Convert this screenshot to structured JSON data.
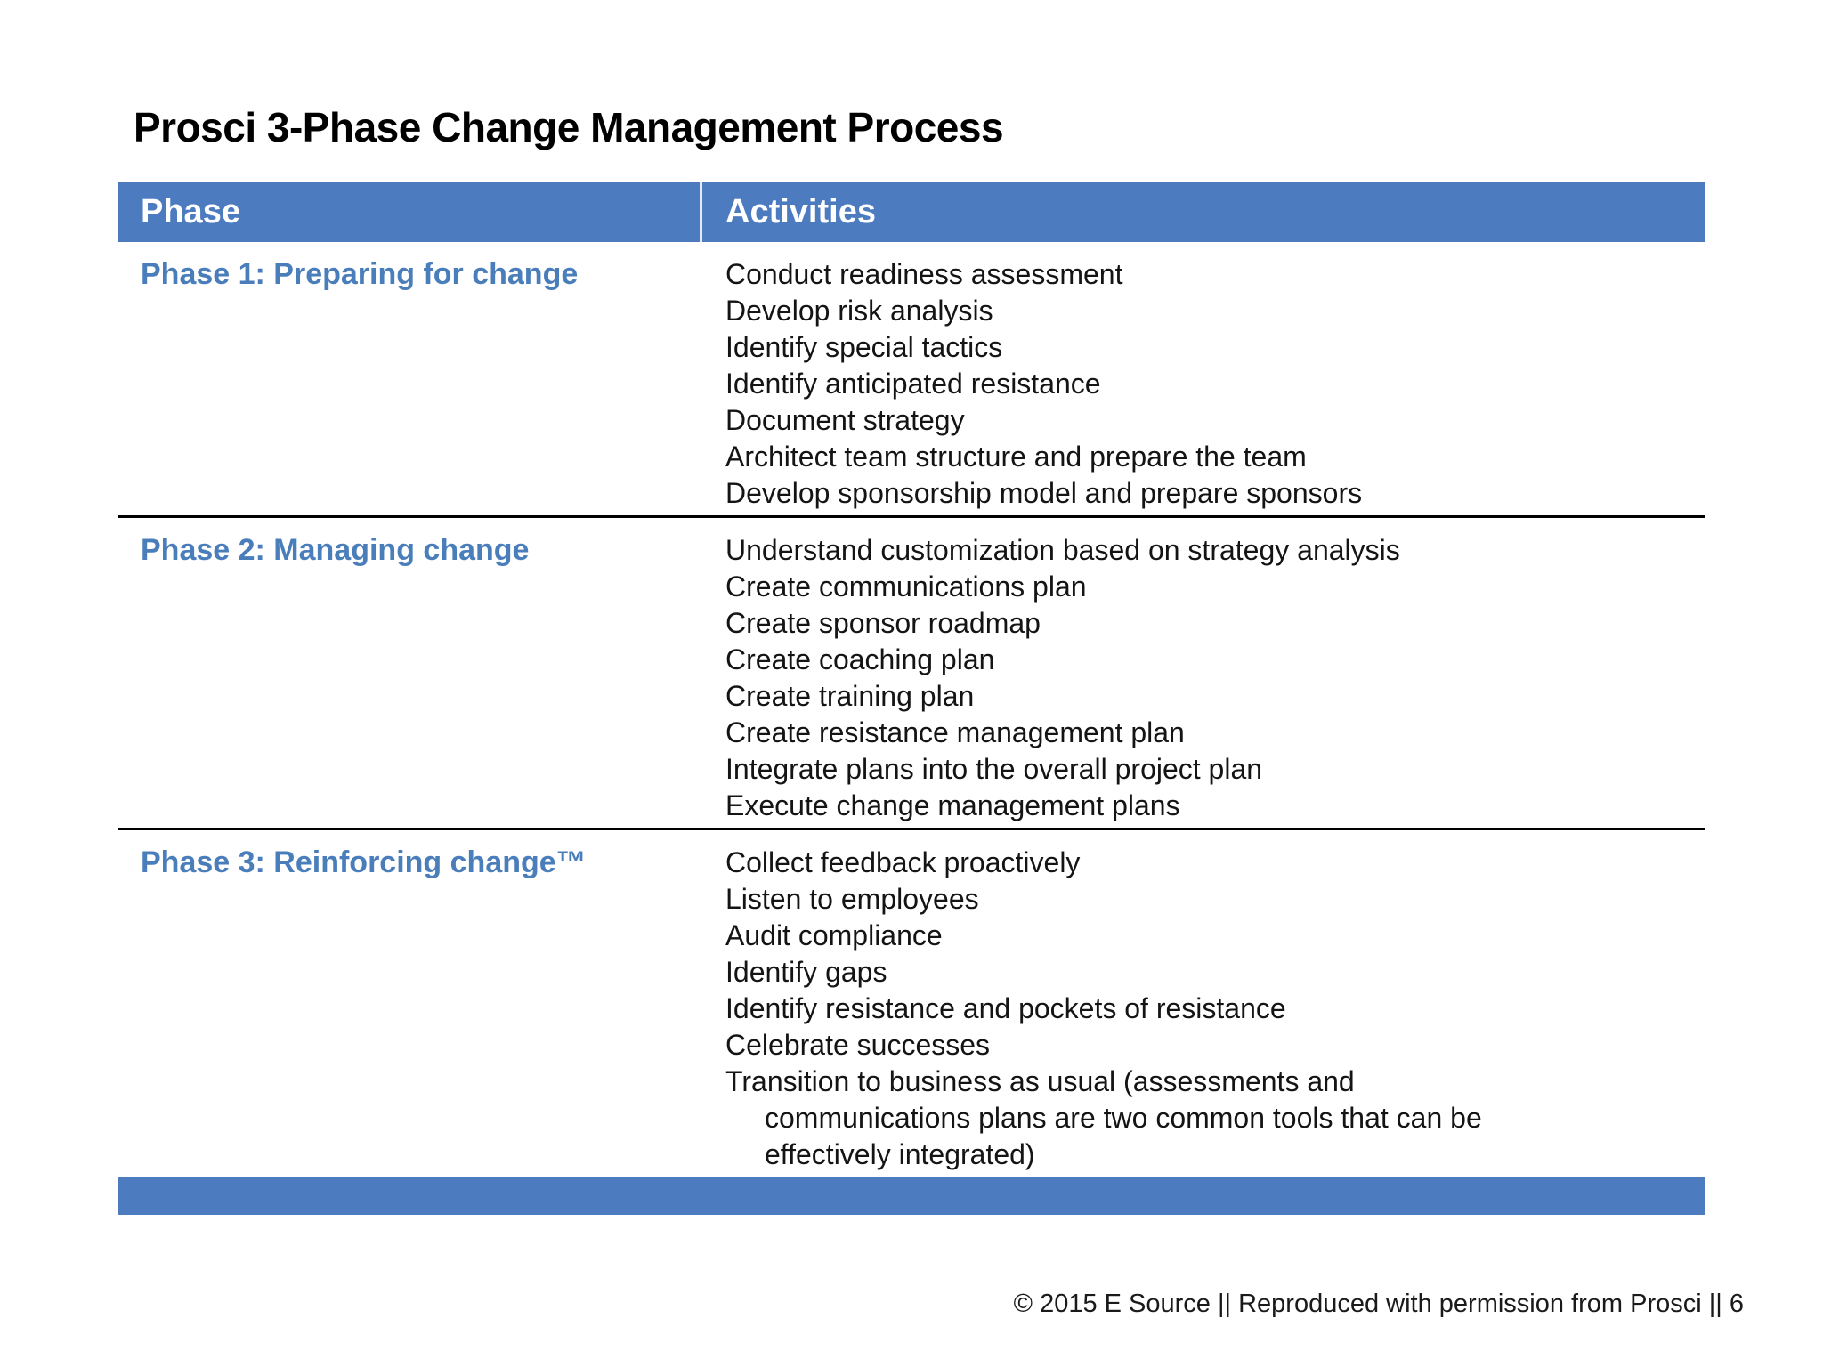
{
  "page_title": "Prosci 3-Phase Change Management Process",
  "colors": {
    "bar_blue": "#4C7BC0",
    "phase_blue": "#4A7EBB",
    "divider_black": "#000000"
  },
  "table": {
    "columns": {
      "phase": "Phase",
      "activities": "Activities"
    },
    "rows": [
      {
        "phase": "Phase 1: Preparing for change",
        "activities": [
          {
            "text": "Conduct readiness assessment",
            "indent": false
          },
          {
            "text": "Develop risk analysis",
            "indent": false
          },
          {
            "text": "Identify special tactics",
            "indent": false
          },
          {
            "text": "Identify anticipated resistance",
            "indent": false
          },
          {
            "text": "Document strategy",
            "indent": false
          },
          {
            "text": "Architect team structure and prepare the team",
            "indent": false
          },
          {
            "text": "Develop sponsorship model and prepare sponsors",
            "indent": false
          }
        ]
      },
      {
        "phase": "Phase 2: Managing change",
        "activities": [
          {
            "text": "Understand customization based on strategy analysis",
            "indent": false
          },
          {
            "text": "Create communications plan",
            "indent": false
          },
          {
            "text": "Create sponsor roadmap",
            "indent": false
          },
          {
            "text": "Create coaching plan",
            "indent": false
          },
          {
            "text": "Create training plan",
            "indent": false
          },
          {
            "text": "Create resistance management plan",
            "indent": false
          },
          {
            "text": "Integrate plans into the overall project plan",
            "indent": false
          },
          {
            "text": "Execute change management plans",
            "indent": false
          }
        ]
      },
      {
        "phase": "Phase 3: Reinforcing change™",
        "activities": [
          {
            "text": "Collect feedback proactively",
            "indent": false
          },
          {
            "text": "Listen to employees",
            "indent": false
          },
          {
            "text": "Audit compliance",
            "indent": false
          },
          {
            "text": "Identify gaps",
            "indent": false
          },
          {
            "text": "Identify resistance and pockets of resistance",
            "indent": false
          },
          {
            "text": "Celebrate successes",
            "indent": false
          },
          {
            "text": "Transition to business as usual (assessments and",
            "indent": false
          },
          {
            "text": "communications plans are two common tools that can be",
            "indent": true
          },
          {
            "text": "effectively integrated)",
            "indent": true
          }
        ]
      }
    ]
  },
  "footer": {
    "text": "© 2015 E Source || Reproduced with permission from Prosci || 6"
  }
}
